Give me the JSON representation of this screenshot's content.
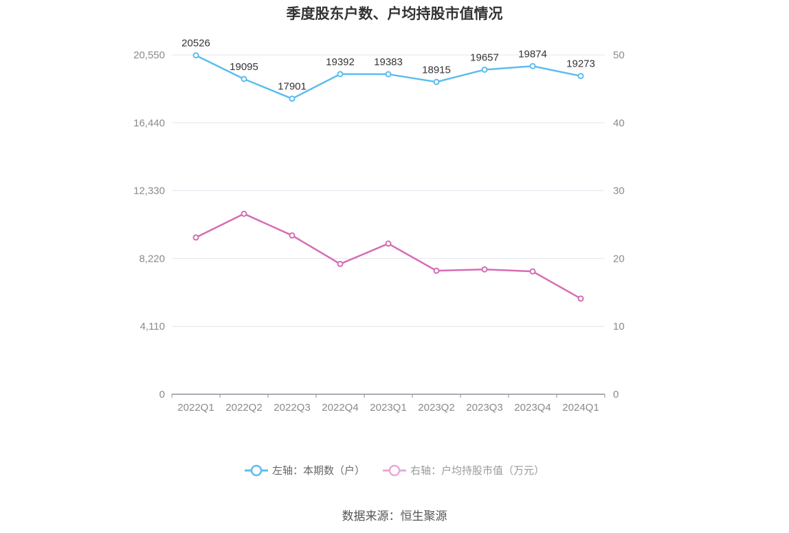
{
  "chart_data": {
    "type": "line",
    "title": "季度股东户数、户均持股市值情况",
    "categories": [
      "2022Q1",
      "2022Q2",
      "2022Q3",
      "2022Q4",
      "2023Q1",
      "2023Q2",
      "2023Q3",
      "2023Q4",
      "2024Q1"
    ],
    "left_axis": {
      "ticks": [
        "0",
        "4,110",
        "8,220",
        "12,330",
        "16,440",
        "20,550"
      ],
      "ylim": [
        0,
        20550
      ]
    },
    "right_axis": {
      "ticks": [
        "0",
        "10",
        "20",
        "30",
        "40",
        "50"
      ],
      "ylim": [
        0,
        50
      ]
    },
    "series": [
      {
        "name": "左轴：本期数（户）",
        "axis": "left",
        "color": "#5bbcf0",
        "values": [
          20526,
          19095,
          17901,
          19392,
          19383,
          18915,
          19657,
          19874,
          19273
        ],
        "labels": [
          "20526",
          "19095",
          "17901",
          "19392",
          "19383",
          "18915",
          "19657",
          "19874",
          "19273"
        ]
      },
      {
        "name": "右轴：户均持股市值（万元）",
        "axis": "right",
        "color": "#d66bb4",
        "values": [
          23.1,
          26.6,
          23.4,
          19.2,
          22.2,
          18.2,
          18.4,
          18.1,
          14.1
        ]
      }
    ],
    "grid": true,
    "legend_position": "bottom"
  },
  "source": "数据来源：恒生聚源"
}
